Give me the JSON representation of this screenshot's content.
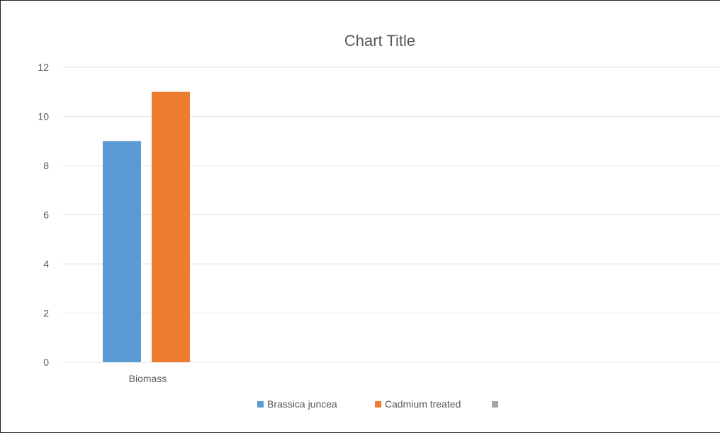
{
  "chart_data": {
    "type": "bar",
    "title": "Chart Title",
    "categories": [
      "Biomass"
    ],
    "series": [
      {
        "name": "Brassica juncea",
        "values": [
          9
        ],
        "color": "#5b9bd5"
      },
      {
        "name": "Cadmium treated",
        "values": [
          11
        ],
        "color": "#ed7d31"
      },
      {
        "name": "",
        "values": [
          null
        ],
        "color": "#a5a5a5"
      }
    ],
    "ylim": [
      0,
      12
    ],
    "yticks": [
      0,
      2,
      4,
      6,
      8,
      10,
      12
    ],
    "grid": true,
    "legend": "bottom"
  }
}
